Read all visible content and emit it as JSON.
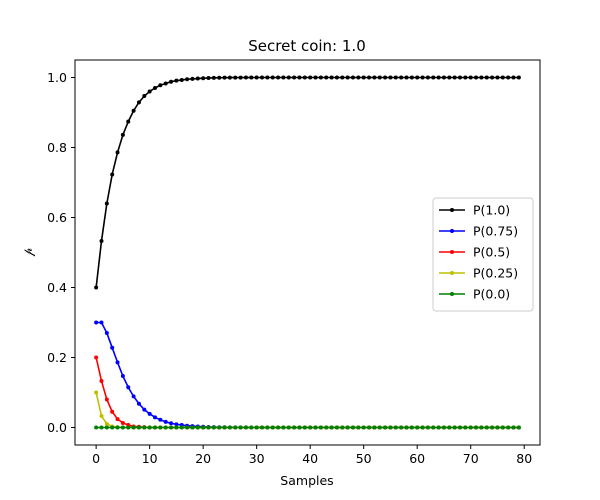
{
  "chart_data": {
    "type": "line",
    "title": "Secret coin: 1.0",
    "xlabel": "Samples",
    "ylabel": "𝓅",
    "xlim": [
      -3.95,
      82.95
    ],
    "ylim": [
      -0.05,
      1.05
    ],
    "xticks": [
      0,
      10,
      20,
      30,
      40,
      50,
      60,
      70,
      80
    ],
    "yticks": [
      0.0,
      0.2,
      0.4,
      0.6,
      0.8,
      1.0
    ],
    "xtick_labels": [
      "0",
      "10",
      "20",
      "30",
      "40",
      "50",
      "60",
      "70",
      "80"
    ],
    "ytick_labels": [
      "0.0",
      "0.2",
      "0.4",
      "0.6",
      "0.8",
      "1.0"
    ],
    "grid": false,
    "legend_position": "center-right",
    "x": [
      0,
      1,
      2,
      3,
      4,
      5,
      6,
      7,
      8,
      9,
      10,
      11,
      12,
      13,
      14,
      15,
      16,
      17,
      18,
      19,
      20,
      21,
      22,
      23,
      24,
      25,
      26,
      27,
      28,
      29,
      30,
      31,
      32,
      33,
      34,
      35,
      36,
      37,
      38,
      39,
      40,
      41,
      42,
      43,
      44,
      45,
      46,
      47,
      48,
      49,
      50,
      51,
      52,
      53,
      54,
      55,
      56,
      57,
      58,
      59,
      60,
      61,
      62,
      63,
      64,
      65,
      66,
      67,
      68,
      69,
      70,
      71,
      72,
      73,
      74,
      75,
      76,
      77,
      78,
      79
    ],
    "series": [
      {
        "name": "P(1.0)",
        "color": "#000000",
        "values": [
          0.4,
          0.533,
          0.64,
          0.723,
          0.786,
          0.836,
          0.874,
          0.905,
          0.929,
          0.947,
          0.96,
          0.97,
          0.978,
          0.983,
          0.988,
          0.991,
          0.993,
          0.995,
          0.996,
          0.997,
          0.998,
          0.9985,
          0.999,
          0.9993,
          0.9995,
          0.9997,
          0.9998,
          0.9998,
          0.9999,
          0.9999,
          1,
          1,
          1,
          1,
          1,
          1,
          1,
          1,
          1,
          1,
          1,
          1,
          1,
          1,
          1,
          1,
          1,
          1,
          1,
          1,
          1,
          1,
          1,
          1,
          1,
          1,
          1,
          1,
          1,
          1,
          1,
          1,
          1,
          1,
          1,
          1,
          1,
          1,
          1,
          1,
          1,
          1,
          1,
          1,
          1,
          1,
          1,
          1,
          1,
          1
        ]
      },
      {
        "name": "P(0.75)",
        "color": "#0000ff",
        "values": [
          0.3,
          0.3,
          0.27,
          0.228,
          0.186,
          0.147,
          0.115,
          0.089,
          0.068,
          0.051,
          0.039,
          0.029,
          0.022,
          0.016,
          0.012,
          0.009,
          0.007,
          0.005,
          0.004,
          0.003,
          0.002,
          0.0015,
          0.001,
          0.0008,
          0.0006,
          0.0004,
          0.0003,
          0.0002,
          0.0002,
          0.0001,
          0,
          0,
          0,
          0,
          0,
          0,
          0,
          0,
          0,
          0,
          0,
          0,
          0,
          0,
          0,
          0,
          0,
          0,
          0,
          0,
          0,
          0,
          0,
          0,
          0,
          0,
          0,
          0,
          0,
          0,
          0,
          0,
          0,
          0,
          0,
          0,
          0,
          0,
          0,
          0,
          0,
          0,
          0,
          0,
          0,
          0,
          0,
          0,
          0,
          0
        ]
      },
      {
        "name": "P(0.5)",
        "color": "#ff0000",
        "values": [
          0.2,
          0.133,
          0.08,
          0.045,
          0.024,
          0.013,
          0.007,
          0.003,
          0.002,
          0.001,
          0,
          0,
          0,
          0,
          0,
          0,
          0,
          0,
          0,
          0,
          0,
          0,
          0,
          0,
          0,
          0,
          0,
          0,
          0,
          0,
          0,
          0,
          0,
          0,
          0,
          0,
          0,
          0,
          0,
          0,
          0,
          0,
          0,
          0,
          0,
          0,
          0,
          0,
          0,
          0,
          0,
          0,
          0,
          0,
          0,
          0,
          0,
          0,
          0,
          0,
          0,
          0,
          0,
          0,
          0,
          0,
          0,
          0,
          0,
          0,
          0,
          0,
          0,
          0,
          0,
          0,
          0,
          0,
          0,
          0
        ]
      },
      {
        "name": "P(0.25)",
        "color": "#bfbf00",
        "values": [
          0.1,
          0.033,
          0.01,
          0.003,
          0.001,
          0,
          0,
          0,
          0,
          0,
          0,
          0,
          0,
          0,
          0,
          0,
          0,
          0,
          0,
          0,
          0,
          0,
          0,
          0,
          0,
          0,
          0,
          0,
          0,
          0,
          0,
          0,
          0,
          0,
          0,
          0,
          0,
          0,
          0,
          0,
          0,
          0,
          0,
          0,
          0,
          0,
          0,
          0,
          0,
          0,
          0,
          0,
          0,
          0,
          0,
          0,
          0,
          0,
          0,
          0,
          0,
          0,
          0,
          0,
          0,
          0,
          0,
          0,
          0,
          0,
          0,
          0,
          0,
          0,
          0,
          0,
          0,
          0,
          0,
          0
        ]
      },
      {
        "name": "P(0.0)",
        "color": "#008000",
        "values": [
          0,
          0,
          0,
          0,
          0,
          0,
          0,
          0,
          0,
          0,
          0,
          0,
          0,
          0,
          0,
          0,
          0,
          0,
          0,
          0,
          0,
          0,
          0,
          0,
          0,
          0,
          0,
          0,
          0,
          0,
          0,
          0,
          0,
          0,
          0,
          0,
          0,
          0,
          0,
          0,
          0,
          0,
          0,
          0,
          0,
          0,
          0,
          0,
          0,
          0,
          0,
          0,
          0,
          0,
          0,
          0,
          0,
          0,
          0,
          0,
          0,
          0,
          0,
          0,
          0,
          0,
          0,
          0,
          0,
          0,
          0,
          0,
          0,
          0,
          0,
          0,
          0,
          0,
          0,
          0
        ]
      }
    ]
  }
}
